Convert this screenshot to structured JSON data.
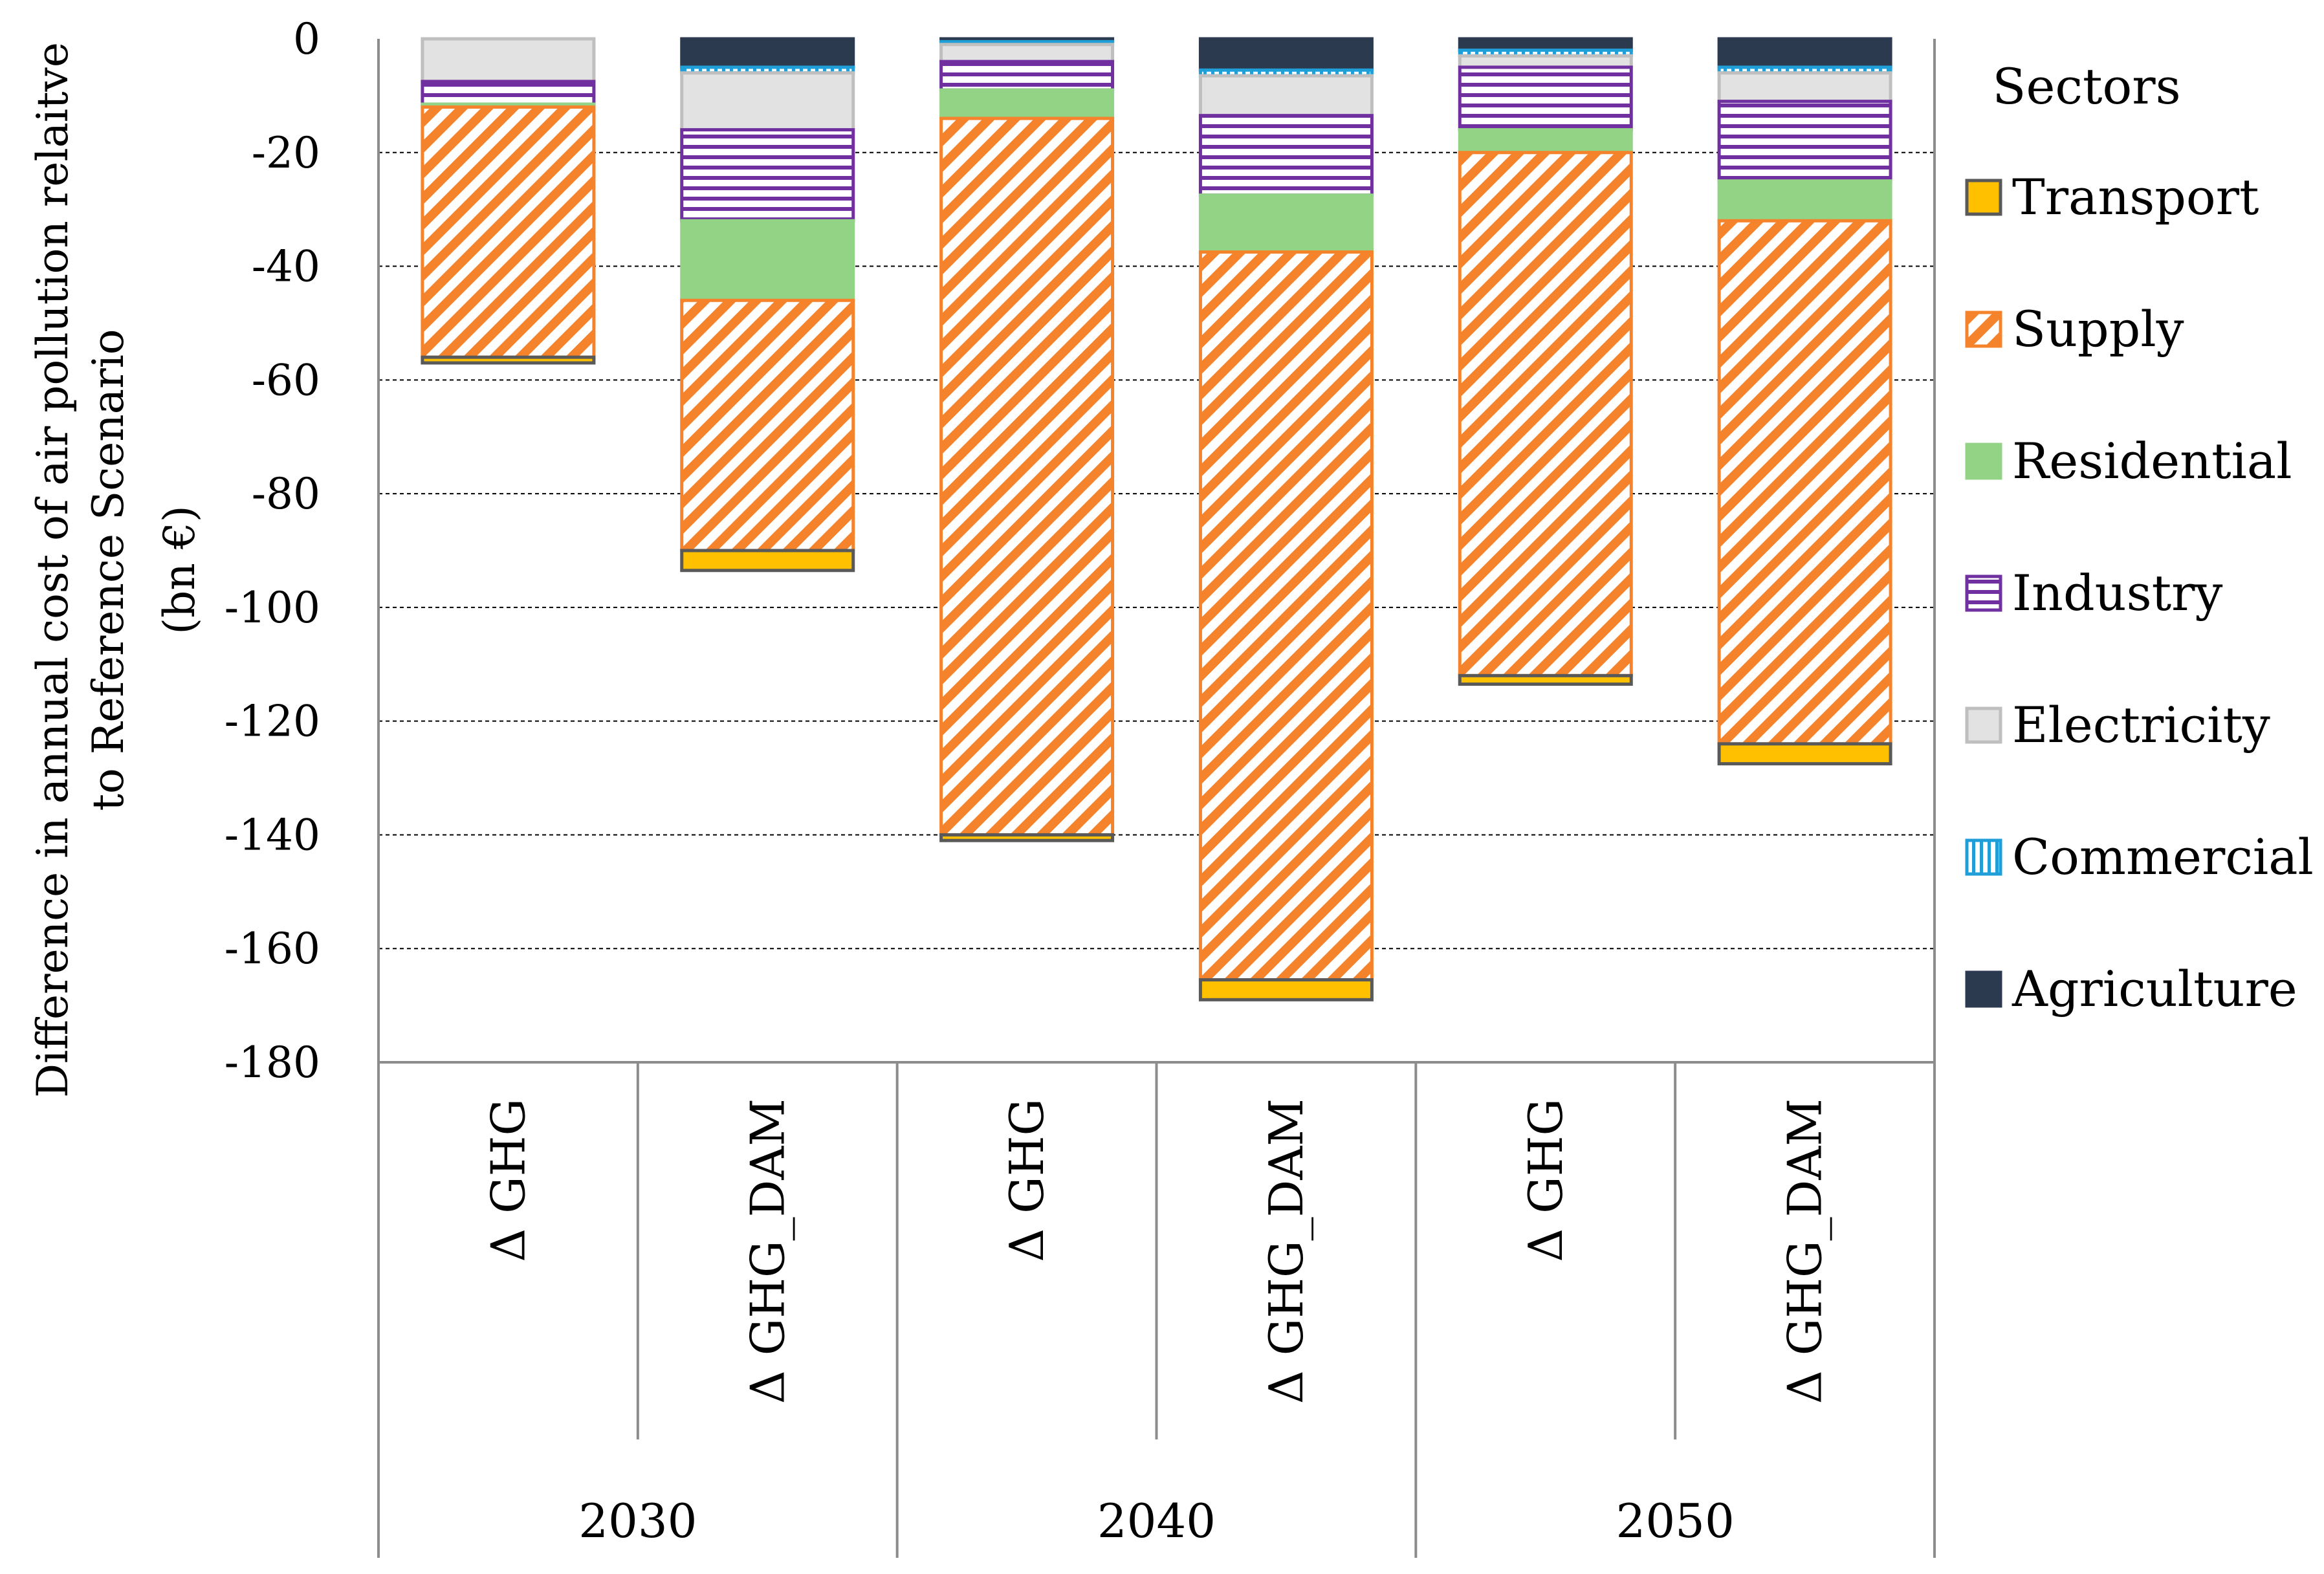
{
  "chart_data": {
    "type": "bar",
    "stacked": true,
    "ylabel_lines": [
      "Difference in annual cost of air pollution relaitve",
      "to Reference Scenario",
      "(bn €)"
    ],
    "ylim": [
      -180,
      0
    ],
    "yticks": [
      0,
      -20,
      -40,
      -60,
      -80,
      -100,
      -120,
      -140,
      -160,
      -180
    ],
    "grid": true,
    "legend": {
      "title": "Sectors",
      "position": "right"
    },
    "groups": [
      {
        "year": "2030",
        "categories": [
          "Δ GHG",
          "Δ GHG_DAM"
        ]
      },
      {
        "year": "2040",
        "categories": [
          "Δ GHG",
          "Δ GHG_DAM"
        ]
      },
      {
        "year": "2050",
        "categories": [
          "Δ GHG",
          "Δ GHG_DAM"
        ]
      }
    ],
    "categories": [
      "Δ GHG",
      "Δ GHG_DAM",
      "Δ GHG",
      "Δ GHG_DAM",
      "Δ GHG",
      "Δ GHG_DAM"
    ],
    "stack_order": [
      "Agriculture",
      "Commercial",
      "Electricity",
      "Industry",
      "Residential",
      "Supply",
      "Transport"
    ],
    "series": [
      {
        "name": "Transport",
        "color": "#ffc000",
        "stroke": "#595959",
        "pattern": "solid",
        "values": [
          -1.0,
          -3.5,
          -1.0,
          -3.5,
          -1.5,
          -3.5
        ]
      },
      {
        "name": "Supply",
        "color": "#f5832b",
        "stroke": "#f5832b",
        "pattern": "diagonal",
        "values": [
          -44,
          -44,
          -126,
          -128,
          -92,
          -92
        ]
      },
      {
        "name": "Residential",
        "color": "#92d386",
        "stroke": "#92d386",
        "pattern": "solid",
        "values": [
          -0.5,
          -14,
          -5,
          -10,
          -4,
          -7
        ]
      },
      {
        "name": "Industry",
        "color": "#7030a0",
        "stroke": "#7030a0",
        "pattern": "horizontal",
        "values": [
          -4,
          -16,
          -5,
          -14,
          -11,
          -14
        ]
      },
      {
        "name": "Electricity",
        "color": "#e2e2e2",
        "stroke": "#bfbfbf",
        "pattern": "solid",
        "values": [
          -7.5,
          -10,
          -3,
          -7,
          -2,
          -5
        ]
      },
      {
        "name": "Commercial",
        "color": "#1f9ed8",
        "stroke": "#1f9ed8",
        "pattern": "vertical",
        "values": [
          0,
          -1,
          -0.5,
          -1,
          -1,
          -1
        ]
      },
      {
        "name": "Agriculture",
        "color": "#2b3a4f",
        "stroke": "#2b3a4f",
        "pattern": "solid",
        "values": [
          0,
          -5,
          -0.5,
          -5.5,
          -2,
          -5
        ]
      }
    ]
  }
}
